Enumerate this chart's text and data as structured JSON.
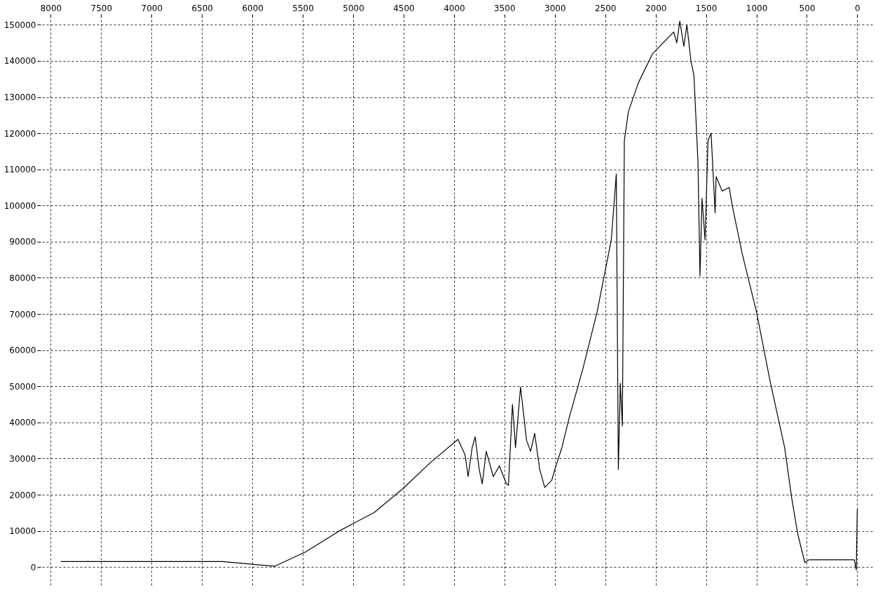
{
  "chart_data": {
    "type": "line",
    "xlim": [
      8100,
      -150
    ],
    "ylim": [
      -5000,
      152000
    ],
    "xticks": [
      8000,
      7500,
      7000,
      6500,
      6000,
      5500,
      5000,
      4500,
      4000,
      3500,
      3000,
      2500,
      2000,
      1500,
      1000,
      500,
      0
    ],
    "yticks": [
      0,
      10000,
      20000,
      30000,
      40000,
      50000,
      60000,
      70000,
      80000,
      90000,
      100000,
      110000,
      120000,
      130000,
      140000,
      150000
    ],
    "grid": true,
    "marker": "none",
    "line_style": "solid",
    "x": [
      7900,
      6300,
      5780,
      5470,
      5130,
      4790,
      4510,
      4230,
      3960,
      3890,
      3860,
      3820,
      3790,
      3750,
      3720,
      3680,
      3610,
      3550,
      3480,
      3460,
      3420,
      3390,
      3340,
      3280,
      3240,
      3200,
      3150,
      3100,
      3030,
      3000,
      2930,
      2860,
      2720,
      2580,
      2440,
      2390,
      2370,
      2350,
      2330,
      2310,
      2270,
      2170,
      2030,
      1890,
      1820,
      1790,
      1760,
      1720,
      1690,
      1650,
      1620,
      1580,
      1560,
      1540,
      1510,
      1480,
      1450,
      1410,
      1400,
      1340,
      1270,
      1240,
      1140,
      1000,
      860,
      720,
      650,
      590,
      520,
      480,
      30,
      10,
      0
    ],
    "series": [
      {
        "color": "#000000",
        "values": [
          1500,
          1500,
          200,
          4200,
          10100,
          15100,
          21600,
          29000,
          35300,
          31000,
          25000,
          33000,
          36000,
          27000,
          23000,
          32000,
          25000,
          28000,
          23000,
          22600,
          45000,
          33000,
          49800,
          35000,
          32000,
          37000,
          27000,
          22000,
          24000,
          27000,
          33000,
          41000,
          55000,
          70600,
          90500,
          108700,
          27000,
          50800,
          39000,
          118000,
          126000,
          134000,
          142000,
          146000,
          148000,
          145000,
          151000,
          144000,
          150000,
          140000,
          136000,
          112000,
          80500,
          102000,
          90500,
          118000,
          120000,
          98000,
          108000,
          104000,
          105000,
          100000,
          86500,
          70600,
          50800,
          33000,
          19000,
          9100,
          1200,
          2000,
          2000,
          -800,
          16000
        ]
      }
    ]
  }
}
